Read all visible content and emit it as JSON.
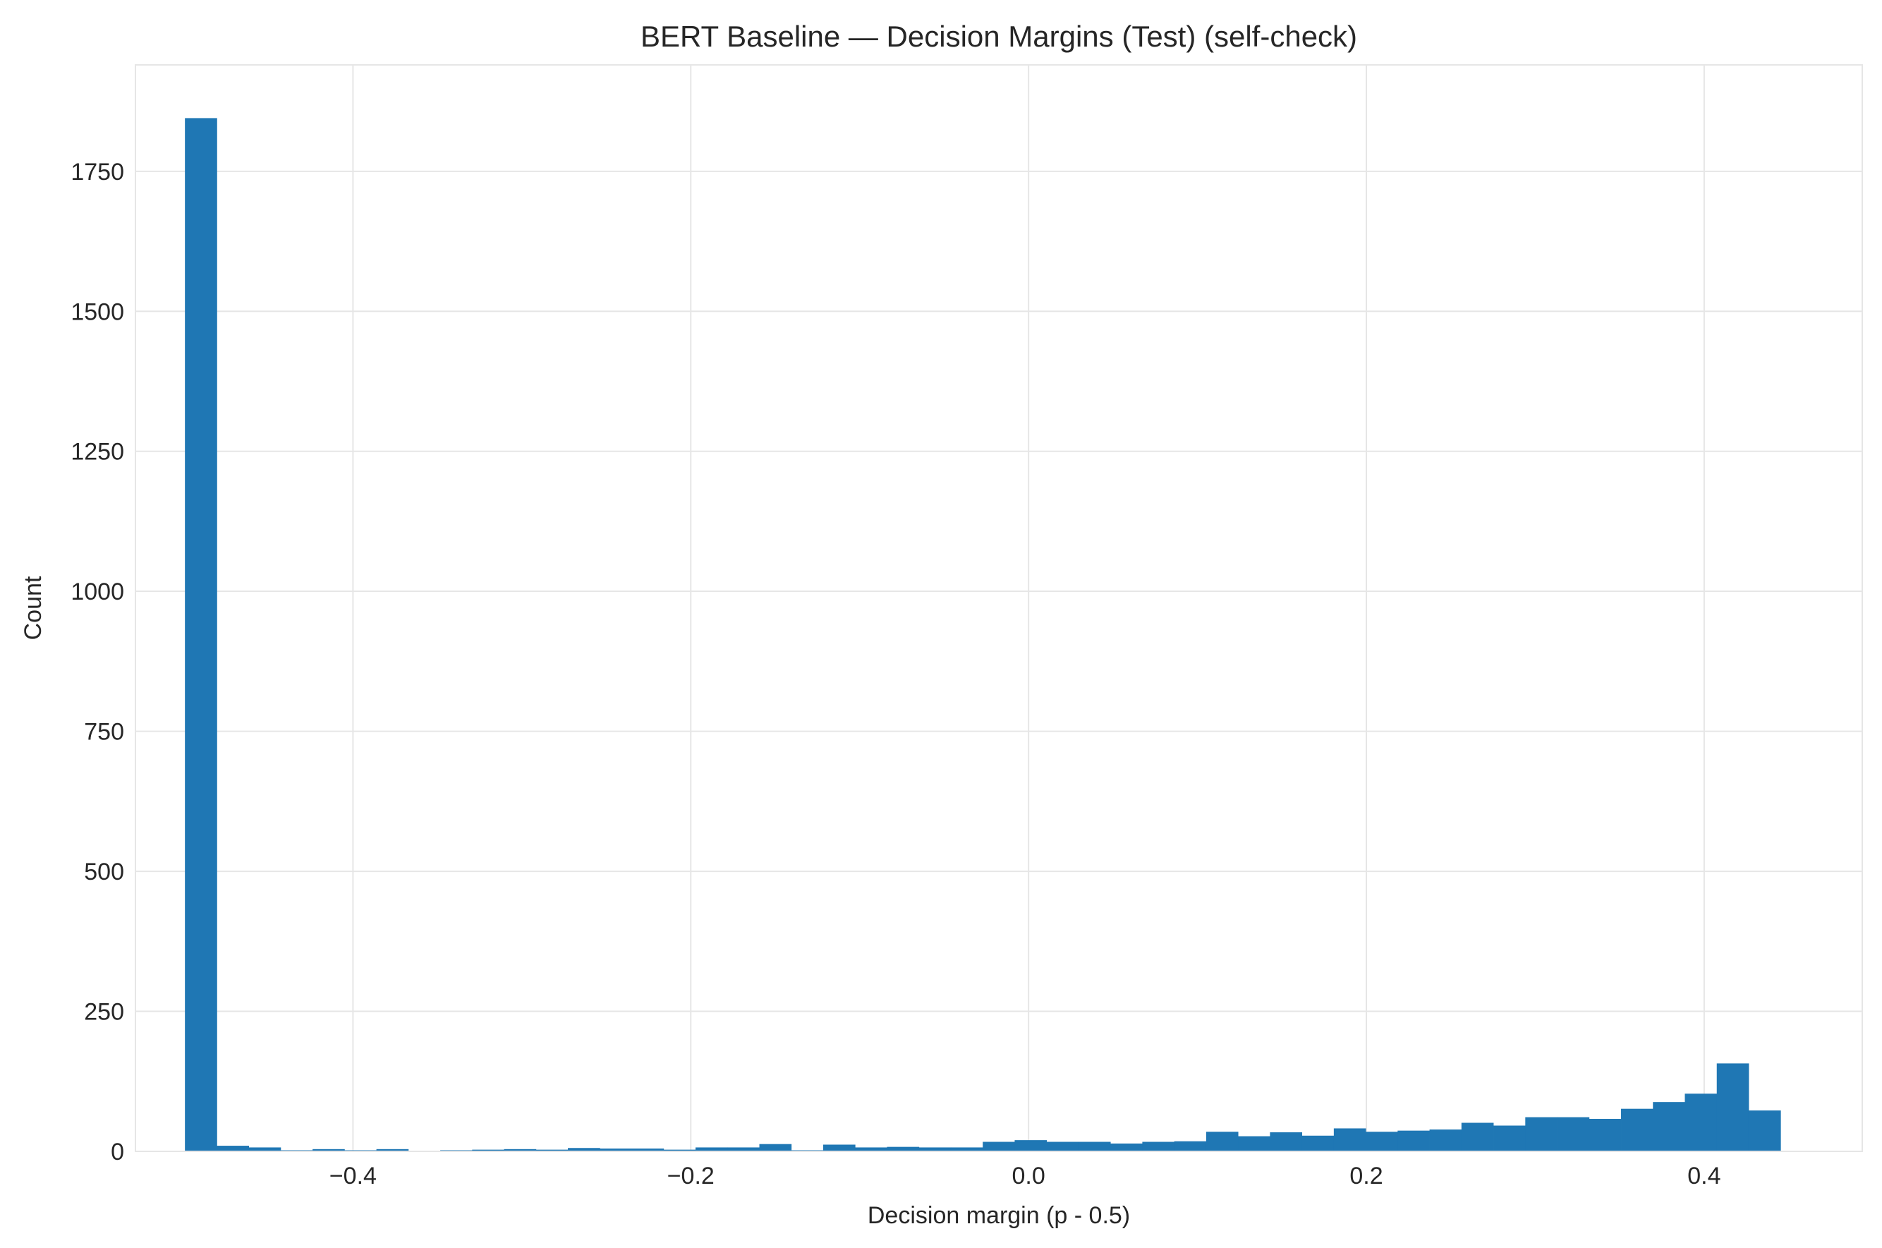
{
  "chart_data": {
    "type": "bar",
    "title": "BERT Baseline — Decision Margins (Test) (self-check)",
    "xlabel": "Decision margin (p - 0.5)",
    "ylabel": "Count",
    "xlim": [
      -0.5288,
      0.4936
    ],
    "ylim": [
      0,
      1940
    ],
    "grid": true,
    "bar_color": "#1f77b4",
    "grid_color": "#e6e6e6",
    "x_ticks": [
      {
        "value": -0.4,
        "label": "−0.4"
      },
      {
        "value": -0.2,
        "label": "−0.2"
      },
      {
        "value": 0.0,
        "label": "0.0"
      },
      {
        "value": 0.2,
        "label": "0.2"
      },
      {
        "value": 0.4,
        "label": "0.4"
      }
    ],
    "y_ticks": [
      {
        "value": 0,
        "label": "0"
      },
      {
        "value": 250,
        "label": "250"
      },
      {
        "value": 500,
        "label": "500"
      },
      {
        "value": 750,
        "label": "750"
      },
      {
        "value": 1000,
        "label": "1000"
      },
      {
        "value": 1250,
        "label": "1250"
      },
      {
        "value": 1500,
        "label": "1500"
      },
      {
        "value": 1750,
        "label": "1750"
      }
    ],
    "bins": {
      "start": -0.4995,
      "width": 0.018895
    },
    "values": [
      1845,
      10,
      7,
      2,
      4,
      2,
      4,
      1,
      2,
      3,
      4,
      3,
      6,
      5,
      5,
      3,
      7,
      7,
      13,
      2,
      12,
      7,
      8,
      7,
      7,
      17,
      20,
      17,
      17,
      14,
      17,
      18,
      35,
      27,
      34,
      28,
      41,
      35,
      37,
      39,
      51,
      46,
      61,
      61,
      58,
      76,
      88,
      103,
      157,
      73
    ]
  }
}
